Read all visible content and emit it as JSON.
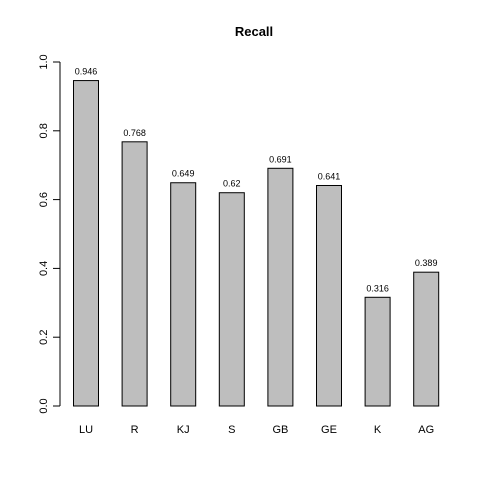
{
  "chart_data": {
    "type": "bar",
    "title": "Recall",
    "xlabel": "",
    "ylabel": "",
    "categories": [
      "LU",
      "R",
      "KJ",
      "S",
      "GB",
      "GE",
      "K",
      "AG"
    ],
    "values": [
      0.946,
      0.768,
      0.649,
      0.62,
      0.691,
      0.641,
      0.316,
      0.389
    ],
    "value_labels": [
      "0.946",
      "0.768",
      "0.649",
      "0.62",
      "0.691",
      "0.641",
      "0.316",
      "0.389"
    ],
    "ylim": [
      0,
      1
    ],
    "yticks": [
      0.0,
      0.2,
      0.4,
      0.6,
      0.8,
      1.0
    ],
    "ytick_labels": [
      "0.0",
      "0.2",
      "0.4",
      "0.6",
      "0.8",
      "1.0"
    ],
    "grid": false,
    "legend": "none",
    "bar_color": "#bebebe",
    "bar_edge_color": "#000000"
  }
}
